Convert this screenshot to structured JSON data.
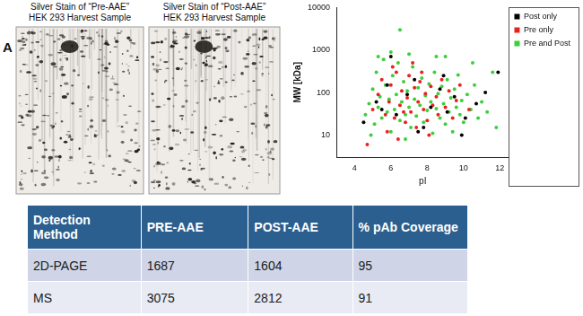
{
  "panel_label": "A",
  "gels": [
    {
      "title": [
        "Silver Stain of “Pre-AAE”",
        "HEK 293 Harvest Sample"
      ]
    },
    {
      "title": [
        "Silver Stain of “Post-AAE”",
        "HEK 293 Harvest Sample"
      ]
    }
  ],
  "chart_data": {
    "type": "scatter",
    "x_label": "pI",
    "y_label": "MW [kDa]",
    "log": "y",
    "xlim": [
      3,
      12.5
    ],
    "xticks": [
      4,
      6,
      8,
      10,
      12
    ],
    "ylim": [
      3,
      10000
    ],
    "yticks": [
      10,
      100,
      1000,
      10000
    ],
    "grid": false,
    "legend": "top-right",
    "series": [
      {
        "name": "Post only",
        "color": "#000000",
        "marker": "circle",
        "x": [
          4.5,
          5.2,
          5.8,
          6.3,
          6.9,
          7.3,
          7.8,
          8.2,
          8.7,
          9.1,
          9.5,
          10.1,
          10.7,
          11.2,
          6.0,
          7.5,
          8.9,
          5.5,
          11.9,
          9.9
        ],
        "values": [
          20,
          60,
          150,
          30,
          90,
          200,
          15,
          45,
          120,
          35,
          80,
          25,
          55,
          100,
          700,
          12,
          250,
          40,
          300,
          10
        ]
      },
      {
        "name": "Pre only",
        "color": "#e8231f",
        "marker": "circle",
        "x": [
          5.0,
          5.3,
          5.5,
          5.7,
          5.9,
          6.0,
          6.2,
          6.3,
          6.5,
          6.6,
          6.8,
          6.9,
          7.0,
          7.1,
          7.3,
          7.4,
          7.5,
          7.6,
          7.8,
          7.9,
          8.0,
          8.2,
          8.3,
          8.5,
          8.6,
          8.8,
          9.0,
          9.2,
          9.4,
          9.6,
          6.1,
          7.2,
          5.8,
          8.1,
          6.4,
          7.7,
          4.7,
          9.8,
          10.3,
          6.7
        ],
        "values": [
          40,
          90,
          200,
          30,
          60,
          150,
          25,
          300,
          50,
          110,
          20,
          75,
          250,
          35,
          130,
          15,
          60,
          180,
          40,
          95,
          22,
          140,
          50,
          80,
          30,
          200,
          45,
          110,
          25,
          65,
          400,
          500,
          12,
          10,
          8,
          300,
          6,
          150,
          40,
          35
        ]
      },
      {
        "name": "Pre and Post",
        "color": "#3ccf3c",
        "marker": "circle",
        "x": [
          4.6,
          4.8,
          5.0,
          5.1,
          5.2,
          5.3,
          5.4,
          5.5,
          5.6,
          5.7,
          5.8,
          5.9,
          6.0,
          6.1,
          6.2,
          6.3,
          6.4,
          6.5,
          6.5,
          6.6,
          6.7,
          6.8,
          6.9,
          7.0,
          7.1,
          7.2,
          7.3,
          7.4,
          7.5,
          7.6,
          7.7,
          7.8,
          7.9,
          8.0,
          8.1,
          8.2,
          8.3,
          8.4,
          8.5,
          8.6,
          8.7,
          8.8,
          8.9,
          9.0,
          9.1,
          9.2,
          9.3,
          9.4,
          9.5,
          9.6,
          9.7,
          9.8,
          9.9,
          10.0,
          10.2,
          10.4,
          10.6,
          10.8,
          11.0,
          11.3,
          11.6,
          11.8,
          5.3,
          6.0,
          7.0,
          8.5,
          4.9,
          6.8,
          9.0,
          10.5
        ],
        "values": [
          30,
          55,
          120,
          18,
          300,
          45,
          80,
          25,
          600,
          150,
          35,
          70,
          12,
          250,
          40,
          90,
          500,
          3000,
          22,
          60,
          180,
          30,
          110,
          45,
          15,
          400,
          70,
          28,
          130,
          50,
          220,
          20,
          85,
          38,
          160,
          60,
          11,
          300,
          42,
          95,
          25,
          140,
          55,
          18,
          200,
          35,
          75,
          12,
          120,
          45,
          260,
          30,
          65,
          20,
          90,
          40,
          150,
          25,
          60,
          35,
          300,
          15,
          700,
          900,
          800,
          700,
          10,
          8,
          700,
          500
        ]
      }
    ]
  },
  "table": {
    "header": [
      "Detection Method",
      "PRE-AAE",
      "POST-AAE",
      "% pAb Coverage"
    ],
    "rows": [
      [
        "2D-PAGE",
        1687,
        1604,
        95
      ],
      [
        "MS",
        3075,
        2812,
        91
      ]
    ]
  }
}
